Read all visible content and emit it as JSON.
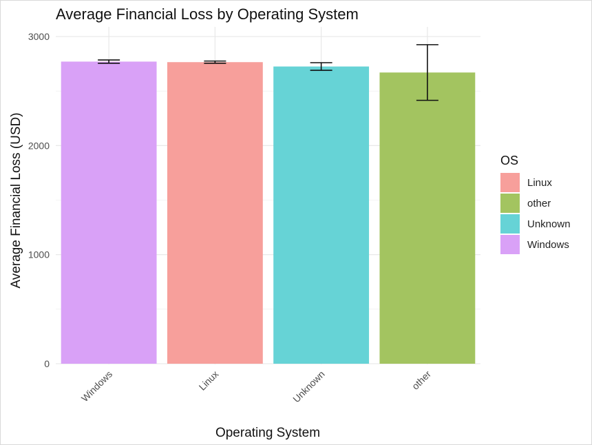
{
  "chart_data": {
    "type": "bar",
    "title": "Average Financial Loss by Operating System",
    "xlabel": "Operating System",
    "ylabel": "Average Financial Loss (USD)",
    "ylim": [
      0,
      3000
    ],
    "yticks": [
      0,
      1000,
      2000,
      3000
    ],
    "categories": [
      "Windows",
      "Linux",
      "Unknown",
      "other"
    ],
    "values": [
      2770,
      2765,
      2725,
      2670
    ],
    "error_low": [
      2755,
      2755,
      2690,
      2415
    ],
    "error_high": [
      2785,
      2775,
      2760,
      2925
    ],
    "colors": [
      "#d9a1f7",
      "#f79f9b",
      "#66d3d6",
      "#a3c460"
    ],
    "grid": true,
    "legend": {
      "title": "OS",
      "position": "right",
      "entries": [
        {
          "label": "Linux",
          "color": "#f79f9b"
        },
        {
          "label": "other",
          "color": "#a3c460"
        },
        {
          "label": "Unknown",
          "color": "#66d3d6"
        },
        {
          "label": "Windows",
          "color": "#d9a1f7"
        }
      ]
    }
  }
}
